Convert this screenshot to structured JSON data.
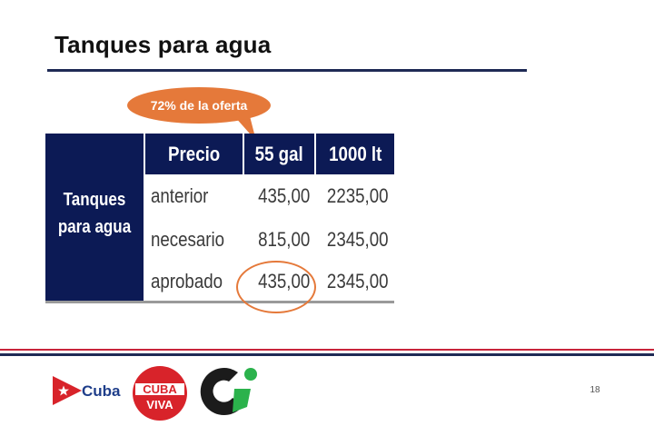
{
  "slide": {
    "title": "Tanques para agua",
    "callout": "72% de la oferta",
    "page_number": "18"
  },
  "table": {
    "row_group_label_line1": "Tanques",
    "row_group_label_line2": "para agua",
    "headers": [
      "Precio",
      "55 gal",
      "1000 lt"
    ],
    "rows": [
      {
        "label": "anterior",
        "gal55": "435,00",
        "lt1000": "2235,00"
      },
      {
        "label": "necesario",
        "gal55": "815,00",
        "lt1000": "2345,00"
      },
      {
        "label": "aprobado",
        "gal55": "435,00",
        "lt1000": "2345,00"
      }
    ]
  },
  "logos": {
    "cuba_text": "Cuba",
    "cuba_viva_line1": "CUBA",
    "cuba_viva_line2": "VIVA"
  },
  "colors": {
    "navy": "#0c1a55",
    "accent_orange": "#e5793a",
    "cuba_red": "#d8232a",
    "cuba_blue": "#1f3e8a",
    "green": "#2bb24c"
  }
}
